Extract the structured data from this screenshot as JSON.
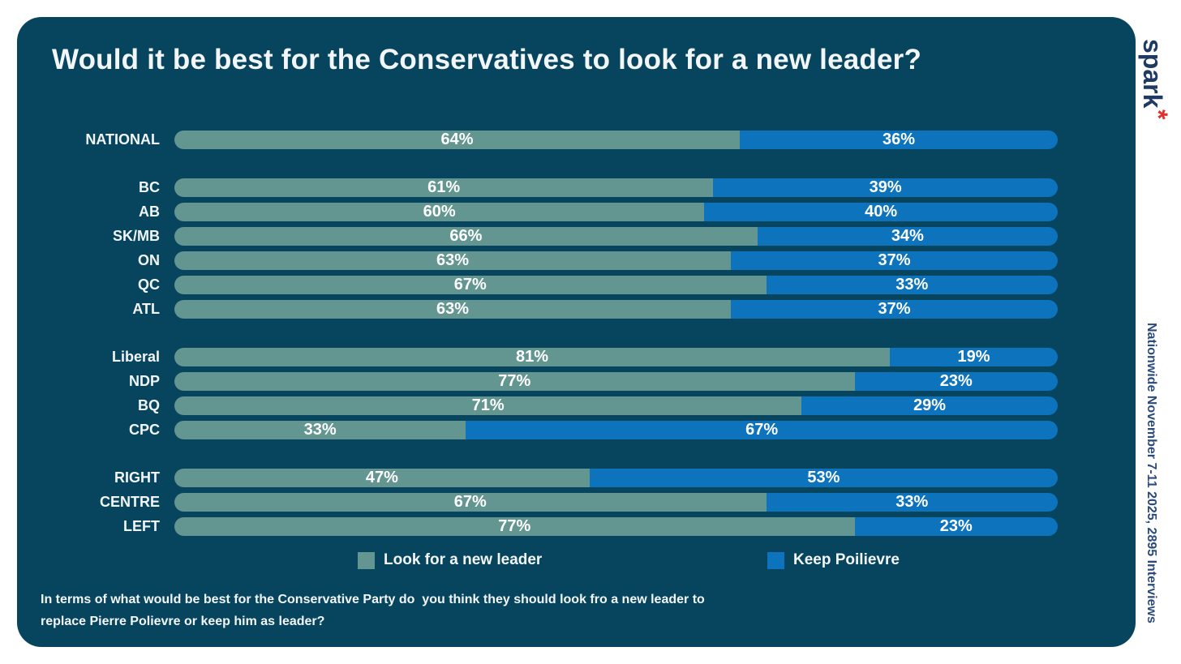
{
  "card": {
    "title": "Would it be best for the Conservatives to look for a new leader?"
  },
  "footer": {
    "line1": "In terms of what would be best for the Conservative Party do  you think they should look fro a new leader to",
    "line2": "replace Pierre Polievre or keep him as leader?"
  },
  "branding": {
    "logo_text": "spark",
    "logo_asterisk": "*",
    "methodology_note": "Nationwide November 7-11 2025, 2895 Interviews"
  },
  "colors": {
    "card_background": "#07455f",
    "page_background": "#ffffff",
    "text": "#f2f6f8",
    "series_new_leader": "#639690",
    "series_keep_poilievre": "#0d73bd",
    "logo_navy": "#1f3a63",
    "logo_asterisk_red": "#e62e2a"
  },
  "chart_data": {
    "type": "bar",
    "orientation": "horizontal",
    "stacked": true,
    "unit": "%",
    "xlim": [
      0,
      100
    ],
    "grid": false,
    "value_labels": "inside-center",
    "legend_position": "bottom",
    "title": "Would it be best for the Conservatives to look for a new leader?",
    "categories": [
      "NATIONAL",
      "BC",
      "AB",
      "SK/MB",
      "ON",
      "QC",
      "ATL",
      "Liberal",
      "NDP",
      "BQ",
      "CPC",
      "RIGHT",
      "CENTRE",
      "LEFT"
    ],
    "groups": [
      [
        "NATIONAL"
      ],
      [
        "BC",
        "AB",
        "SK/MB",
        "ON",
        "QC",
        "ATL"
      ],
      [
        "Liberal",
        "NDP",
        "BQ",
        "CPC"
      ],
      [
        "RIGHT",
        "CENTRE",
        "LEFT"
      ]
    ],
    "series": [
      {
        "name": "Look for a new leader",
        "color": "#639690",
        "values": [
          64,
          61,
          60,
          66,
          63,
          67,
          63,
          81,
          77,
          71,
          33,
          47,
          67,
          77
        ]
      },
      {
        "name": "Keep Poilievre",
        "color": "#0d73bd",
        "values": [
          36,
          39,
          40,
          34,
          37,
          33,
          37,
          19,
          23,
          29,
          67,
          53,
          33,
          23
        ]
      }
    ]
  }
}
